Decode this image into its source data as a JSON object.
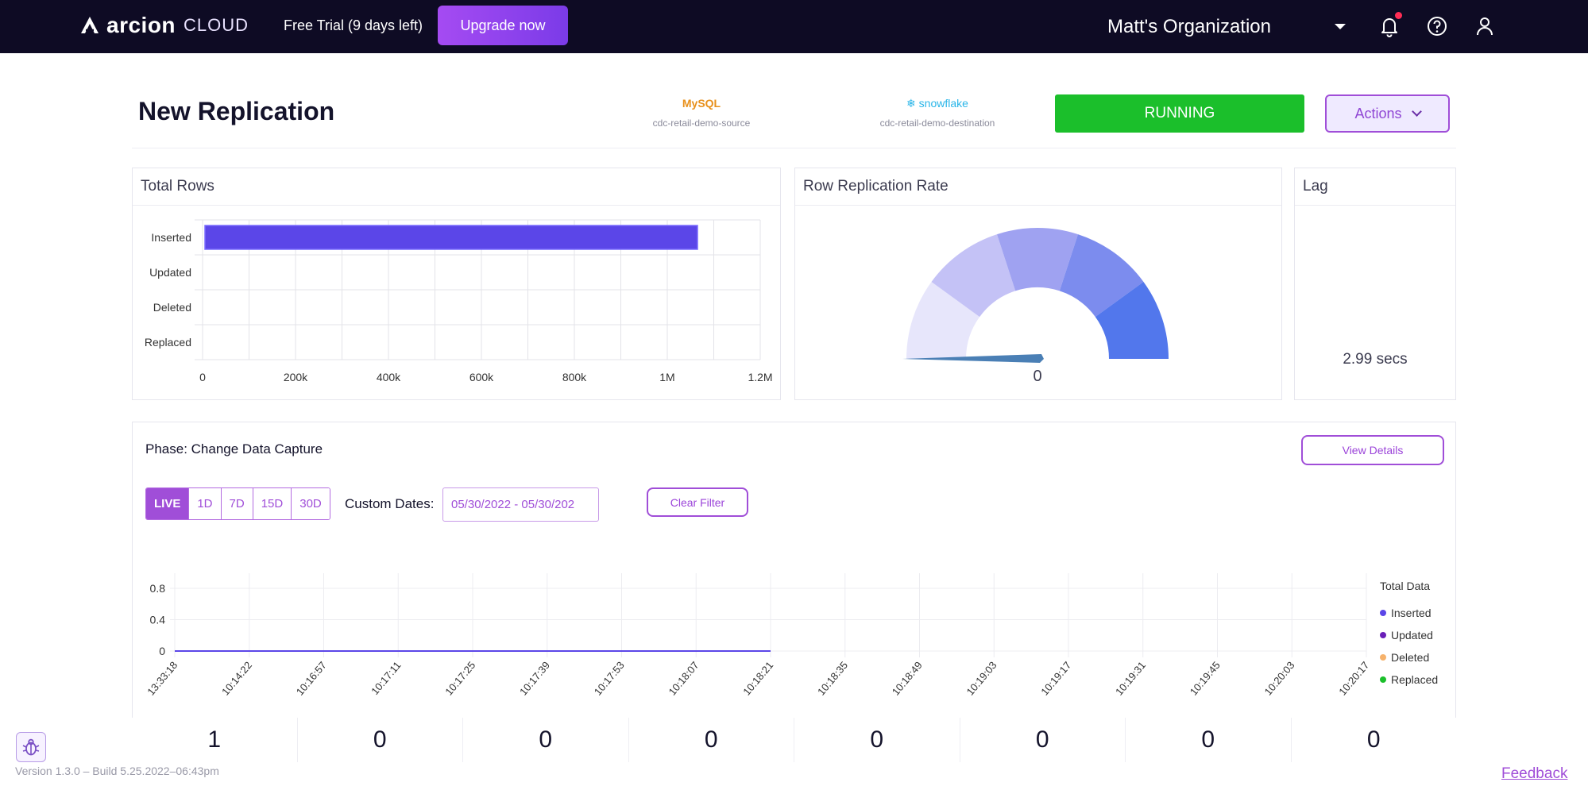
{
  "topbar": {
    "brand": "arcion",
    "brand_suffix": "CLOUD",
    "trial_text": "Free Trial (9 days left)",
    "upgrade_label": "Upgrade now",
    "organization": "Matt's Organization",
    "icons": [
      "bell-icon",
      "help-icon",
      "user-icon"
    ]
  },
  "header": {
    "title": "New Replication",
    "source": {
      "logo_text": "MySQL",
      "name": "cdc-retail-demo-source"
    },
    "destination": {
      "logo_text": "snowflake",
      "name": "cdc-retail-demo-destination"
    },
    "status": "RUNNING",
    "actions_label": "Actions"
  },
  "total_rows": {
    "title": "Total Rows",
    "chart_data": {
      "type": "bar",
      "orientation": "horizontal",
      "categories": [
        "Inserted",
        "Updated",
        "Deleted",
        "Replaced"
      ],
      "values": [
        1065000,
        0,
        0,
        0
      ],
      "x_ticks": [
        "0",
        "200k",
        "400k",
        "600k",
        "800k",
        "1M",
        "1.2M"
      ],
      "xlim": [
        0,
        1200000
      ],
      "bar_color": "#5b46e8",
      "grid": true
    }
  },
  "replication_rate": {
    "title": "Row Replication Rate",
    "value_label": "0",
    "gauge_value": 0,
    "segment_colors": [
      "#e7e6fb",
      "#c4c2f6",
      "#9fa2f1",
      "#7c8cee",
      "#5277ec"
    ],
    "needle_color": "#4a7fb5"
  },
  "lag": {
    "title": "Lag",
    "value": "2.99 secs"
  },
  "phase": {
    "title": "Phase: Change Data Capture",
    "view_details_label": "View Details",
    "ranges": [
      "LIVE",
      "1D",
      "7D",
      "15D",
      "30D"
    ],
    "active_range": "LIVE",
    "custom_dates_label": "Custom Dates:",
    "date_value": "05/30/2022 - 05/30/202",
    "clear_filter_label": "Clear Filter",
    "chart_data": {
      "type": "line",
      "x": [
        "13:33:18",
        "10:14:22",
        "10:16:57",
        "10:17:11",
        "10:17:25",
        "10:17:39",
        "10:17:53",
        "10:18:07",
        "10:18:21",
        "10:18:35",
        "10:18:49",
        "10:19:03",
        "10:19:17",
        "10:19:31",
        "10:19:45",
        "10:20:03",
        "10:20:17"
      ],
      "y_ticks": [
        "0.8",
        "0.4",
        "0"
      ],
      "ylim": [
        0,
        0.8
      ],
      "series": [
        {
          "name": "Inserted",
          "color": "#5b46e8",
          "values": [
            0,
            0,
            0,
            0,
            0,
            0,
            0,
            0,
            0,
            null,
            null,
            null,
            null,
            null,
            null,
            null,
            null
          ]
        },
        {
          "name": "Updated",
          "color": "#6a1fb8",
          "values": [
            0,
            0,
            0,
            0,
            0,
            0,
            0,
            0,
            0,
            null,
            null,
            null,
            null,
            null,
            null,
            null,
            null
          ]
        },
        {
          "name": "Deleted",
          "color": "#f6b26b",
          "values": [
            0,
            0,
            0,
            0,
            0,
            0,
            0,
            0,
            0,
            null,
            null,
            null,
            null,
            null,
            null,
            null,
            null
          ]
        },
        {
          "name": "Replaced",
          "color": "#1bbf2b",
          "values": [
            0,
            0,
            0,
            0,
            0,
            0,
            0,
            0,
            0,
            null,
            null,
            null,
            null,
            null,
            null,
            null,
            null
          ]
        }
      ],
      "legend_title": "Total Data",
      "legend_position": "right",
      "grid": true
    },
    "totals": [
      "1",
      "0",
      "0",
      "0",
      "0",
      "0",
      "0",
      "0"
    ]
  },
  "footer": {
    "version": "Version 1.3.0 – Build 5.25.2022–06:43pm",
    "feedback": "Feedback"
  }
}
